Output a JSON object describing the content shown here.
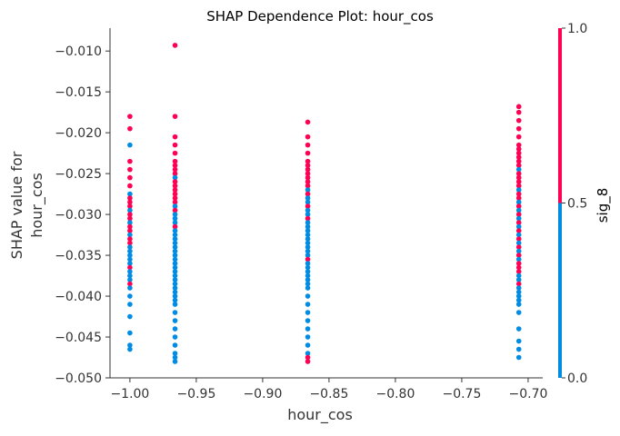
{
  "chart_data": {
    "type": "scatter",
    "title": "SHAP Dependence Plot: hour_cos",
    "xlabel": "hour_cos",
    "ylabel_lines": [
      "SHAP value for",
      "hour_cos"
    ],
    "xlim": [
      -1.015,
      -0.689
    ],
    "ylim": [
      -0.05,
      -0.0072
    ],
    "x_ticks": [
      {
        "value": -1.0,
        "label": "−1.00"
      },
      {
        "value": -0.95,
        "label": "−0.95"
      },
      {
        "value": -0.9,
        "label": "−0.90"
      },
      {
        "value": -0.85,
        "label": "−0.85"
      },
      {
        "value": -0.8,
        "label": "−0.80"
      },
      {
        "value": -0.75,
        "label": "−0.75"
      },
      {
        "value": -0.7,
        "label": "−0.70"
      }
    ],
    "y_ticks": [
      {
        "value": -0.01,
        "label": "−0.010"
      },
      {
        "value": -0.015,
        "label": "−0.015"
      },
      {
        "value": -0.02,
        "label": "−0.020"
      },
      {
        "value": -0.025,
        "label": "−0.025"
      },
      {
        "value": -0.03,
        "label": "−0.030"
      },
      {
        "value": -0.035,
        "label": "−0.035"
      },
      {
        "value": -0.04,
        "label": "−0.040"
      },
      {
        "value": -0.045,
        "label": "−0.045"
      },
      {
        "value": -0.05,
        "label": "−0.050"
      }
    ],
    "grid": false,
    "colorbar": {
      "label": "sig_8",
      "ticks": [
        {
          "value": 0.0,
          "label": "0.0"
        },
        {
          "value": 0.5,
          "label": "0.5"
        },
        {
          "value": 1.0,
          "label": "1.0"
        }
      ]
    },
    "colors": {
      "low": "#008BE5",
      "high": "#FF0052",
      "axis": "#333333"
    },
    "series": [
      {
        "x": -1.0,
        "points": [
          {
            "y": -0.018,
            "c": 1
          },
          {
            "y": -0.0195,
            "c": 1
          },
          {
            "y": -0.0215,
            "c": 0
          },
          {
            "y": -0.0235,
            "c": 1
          },
          {
            "y": -0.0245,
            "c": 1
          },
          {
            "y": -0.0255,
            "c": 1
          },
          {
            "y": -0.0265,
            "c": 1
          },
          {
            "y": -0.0275,
            "c": 0
          },
          {
            "y": -0.028,
            "c": 1
          },
          {
            "y": -0.0285,
            "c": 1
          },
          {
            "y": -0.029,
            "c": 1
          },
          {
            "y": -0.0295,
            "c": 0
          },
          {
            "y": -0.03,
            "c": 1
          },
          {
            "y": -0.0305,
            "c": 1
          },
          {
            "y": -0.031,
            "c": 0
          },
          {
            "y": -0.0315,
            "c": 1
          },
          {
            "y": -0.032,
            "c": 1
          },
          {
            "y": -0.0325,
            "c": 0
          },
          {
            "y": -0.033,
            "c": 1
          },
          {
            "y": -0.0335,
            "c": 1
          },
          {
            "y": -0.034,
            "c": 0
          },
          {
            "y": -0.0345,
            "c": 0
          },
          {
            "y": -0.035,
            "c": 0
          },
          {
            "y": -0.0355,
            "c": 0
          },
          {
            "y": -0.036,
            "c": 0
          },
          {
            "y": -0.0365,
            "c": 1
          },
          {
            "y": -0.037,
            "c": 0
          },
          {
            "y": -0.0375,
            "c": 0
          },
          {
            "y": -0.038,
            "c": 0
          },
          {
            "y": -0.0385,
            "c": 1
          },
          {
            "y": -0.039,
            "c": 0
          },
          {
            "y": -0.04,
            "c": 0
          },
          {
            "y": -0.041,
            "c": 0
          },
          {
            "y": -0.0425,
            "c": 0
          },
          {
            "y": -0.0445,
            "c": 0
          },
          {
            "y": -0.046,
            "c": 0
          },
          {
            "y": -0.0465,
            "c": 0
          }
        ]
      },
      {
        "x": -0.966,
        "points": [
          {
            "y": -0.0093,
            "c": 1
          },
          {
            "y": -0.018,
            "c": 1
          },
          {
            "y": -0.0205,
            "c": 1
          },
          {
            "y": -0.0215,
            "c": 1
          },
          {
            "y": -0.0225,
            "c": 1
          },
          {
            "y": -0.0235,
            "c": 1
          },
          {
            "y": -0.024,
            "c": 1
          },
          {
            "y": -0.0245,
            "c": 1
          },
          {
            "y": -0.025,
            "c": 1
          },
          {
            "y": -0.0255,
            "c": 0
          },
          {
            "y": -0.026,
            "c": 1
          },
          {
            "y": -0.0265,
            "c": 1
          },
          {
            "y": -0.027,
            "c": 1
          },
          {
            "y": -0.0275,
            "c": 1
          },
          {
            "y": -0.028,
            "c": 1
          },
          {
            "y": -0.0285,
            "c": 1
          },
          {
            "y": -0.029,
            "c": 0
          },
          {
            "y": -0.0295,
            "c": 1
          },
          {
            "y": -0.03,
            "c": 0
          },
          {
            "y": -0.0305,
            "c": 0
          },
          {
            "y": -0.031,
            "c": 0
          },
          {
            "y": -0.0315,
            "c": 1
          },
          {
            "y": -0.032,
            "c": 0
          },
          {
            "y": -0.0325,
            "c": 0
          },
          {
            "y": -0.033,
            "c": 0
          },
          {
            "y": -0.0335,
            "c": 0
          },
          {
            "y": -0.034,
            "c": 0
          },
          {
            "y": -0.0345,
            "c": 0
          },
          {
            "y": -0.035,
            "c": 0
          },
          {
            "y": -0.0355,
            "c": 0
          },
          {
            "y": -0.036,
            "c": 0
          },
          {
            "y": -0.0365,
            "c": 0
          },
          {
            "y": -0.037,
            "c": 0
          },
          {
            "y": -0.0375,
            "c": 0
          },
          {
            "y": -0.038,
            "c": 0
          },
          {
            "y": -0.0385,
            "c": 0
          },
          {
            "y": -0.039,
            "c": 0
          },
          {
            "y": -0.0395,
            "c": 0
          },
          {
            "y": -0.04,
            "c": 0
          },
          {
            "y": -0.0405,
            "c": 0
          },
          {
            "y": -0.041,
            "c": 0
          },
          {
            "y": -0.042,
            "c": 0
          },
          {
            "y": -0.043,
            "c": 0
          },
          {
            "y": -0.044,
            "c": 0
          },
          {
            "y": -0.045,
            "c": 0
          },
          {
            "y": -0.046,
            "c": 0
          },
          {
            "y": -0.047,
            "c": 0
          },
          {
            "y": -0.0475,
            "c": 0
          },
          {
            "y": -0.048,
            "c": 0
          }
        ]
      },
      {
        "x": -0.866,
        "points": [
          {
            "y": -0.0187,
            "c": 1
          },
          {
            "y": -0.0205,
            "c": 1
          },
          {
            "y": -0.0215,
            "c": 1
          },
          {
            "y": -0.0225,
            "c": 1
          },
          {
            "y": -0.0235,
            "c": 1
          },
          {
            "y": -0.024,
            "c": 1
          },
          {
            "y": -0.0245,
            "c": 1
          },
          {
            "y": -0.025,
            "c": 1
          },
          {
            "y": -0.0255,
            "c": 1
          },
          {
            "y": -0.026,
            "c": 1
          },
          {
            "y": -0.0265,
            "c": 1
          },
          {
            "y": -0.027,
            "c": 0
          },
          {
            "y": -0.0275,
            "c": 1
          },
          {
            "y": -0.028,
            "c": 0
          },
          {
            "y": -0.0285,
            "c": 0
          },
          {
            "y": -0.029,
            "c": 1
          },
          {
            "y": -0.0295,
            "c": 0
          },
          {
            "y": -0.03,
            "c": 0
          },
          {
            "y": -0.0305,
            "c": 1
          },
          {
            "y": -0.031,
            "c": 0
          },
          {
            "y": -0.0315,
            "c": 0
          },
          {
            "y": -0.032,
            "c": 0
          },
          {
            "y": -0.0325,
            "c": 0
          },
          {
            "y": -0.033,
            "c": 0
          },
          {
            "y": -0.0335,
            "c": 0
          },
          {
            "y": -0.034,
            "c": 0
          },
          {
            "y": -0.0345,
            "c": 0
          },
          {
            "y": -0.035,
            "c": 0
          },
          {
            "y": -0.0355,
            "c": 1
          },
          {
            "y": -0.036,
            "c": 0
          },
          {
            "y": -0.0365,
            "c": 0
          },
          {
            "y": -0.037,
            "c": 0
          },
          {
            "y": -0.0375,
            "c": 0
          },
          {
            "y": -0.038,
            "c": 0
          },
          {
            "y": -0.0385,
            "c": 0
          },
          {
            "y": -0.039,
            "c": 0
          },
          {
            "y": -0.04,
            "c": 0
          },
          {
            "y": -0.041,
            "c": 0
          },
          {
            "y": -0.042,
            "c": 0
          },
          {
            "y": -0.043,
            "c": 0
          },
          {
            "y": -0.044,
            "c": 0
          },
          {
            "y": -0.045,
            "c": 0
          },
          {
            "y": -0.046,
            "c": 0
          },
          {
            "y": -0.047,
            "c": 0
          },
          {
            "y": -0.0475,
            "c": 1
          },
          {
            "y": -0.048,
            "c": 1
          }
        ]
      },
      {
        "x": -0.707,
        "points": [
          {
            "y": -0.0168,
            "c": 1
          },
          {
            "y": -0.0175,
            "c": 1
          },
          {
            "y": -0.0185,
            "c": 1
          },
          {
            "y": -0.0195,
            "c": 1
          },
          {
            "y": -0.0205,
            "c": 1
          },
          {
            "y": -0.0215,
            "c": 1
          },
          {
            "y": -0.022,
            "c": 1
          },
          {
            "y": -0.0225,
            "c": 1
          },
          {
            "y": -0.023,
            "c": 1
          },
          {
            "y": -0.0235,
            "c": 1
          },
          {
            "y": -0.024,
            "c": 1
          },
          {
            "y": -0.0245,
            "c": 0
          },
          {
            "y": -0.025,
            "c": 1
          },
          {
            "y": -0.0255,
            "c": 1
          },
          {
            "y": -0.026,
            "c": 1
          },
          {
            "y": -0.0265,
            "c": 1
          },
          {
            "y": -0.027,
            "c": 0
          },
          {
            "y": -0.0275,
            "c": 1
          },
          {
            "y": -0.028,
            "c": 1
          },
          {
            "y": -0.0285,
            "c": 0
          },
          {
            "y": -0.029,
            "c": 1
          },
          {
            "y": -0.0295,
            "c": 0
          },
          {
            "y": -0.03,
            "c": 1
          },
          {
            "y": -0.0305,
            "c": 0
          },
          {
            "y": -0.031,
            "c": 1
          },
          {
            "y": -0.0315,
            "c": 0
          },
          {
            "y": -0.032,
            "c": 1
          },
          {
            "y": -0.0325,
            "c": 0
          },
          {
            "y": -0.033,
            "c": 1
          },
          {
            "y": -0.0335,
            "c": 0
          },
          {
            "y": -0.034,
            "c": 1
          },
          {
            "y": -0.0345,
            "c": 0
          },
          {
            "y": -0.035,
            "c": 1
          },
          {
            "y": -0.0355,
            "c": 0
          },
          {
            "y": -0.036,
            "c": 1
          },
          {
            "y": -0.0365,
            "c": 1
          },
          {
            "y": -0.037,
            "c": 1
          },
          {
            "y": -0.0375,
            "c": 0
          },
          {
            "y": -0.038,
            "c": 0
          },
          {
            "y": -0.0385,
            "c": 1
          },
          {
            "y": -0.039,
            "c": 0
          },
          {
            "y": -0.0395,
            "c": 0
          },
          {
            "y": -0.04,
            "c": 0
          },
          {
            "y": -0.0405,
            "c": 0
          },
          {
            "y": -0.041,
            "c": 0
          },
          {
            "y": -0.042,
            "c": 0
          },
          {
            "y": -0.044,
            "c": 0
          },
          {
            "y": -0.0455,
            "c": 0
          },
          {
            "y": -0.0465,
            "c": 0
          },
          {
            "y": -0.0475,
            "c": 0
          }
        ]
      }
    ]
  }
}
